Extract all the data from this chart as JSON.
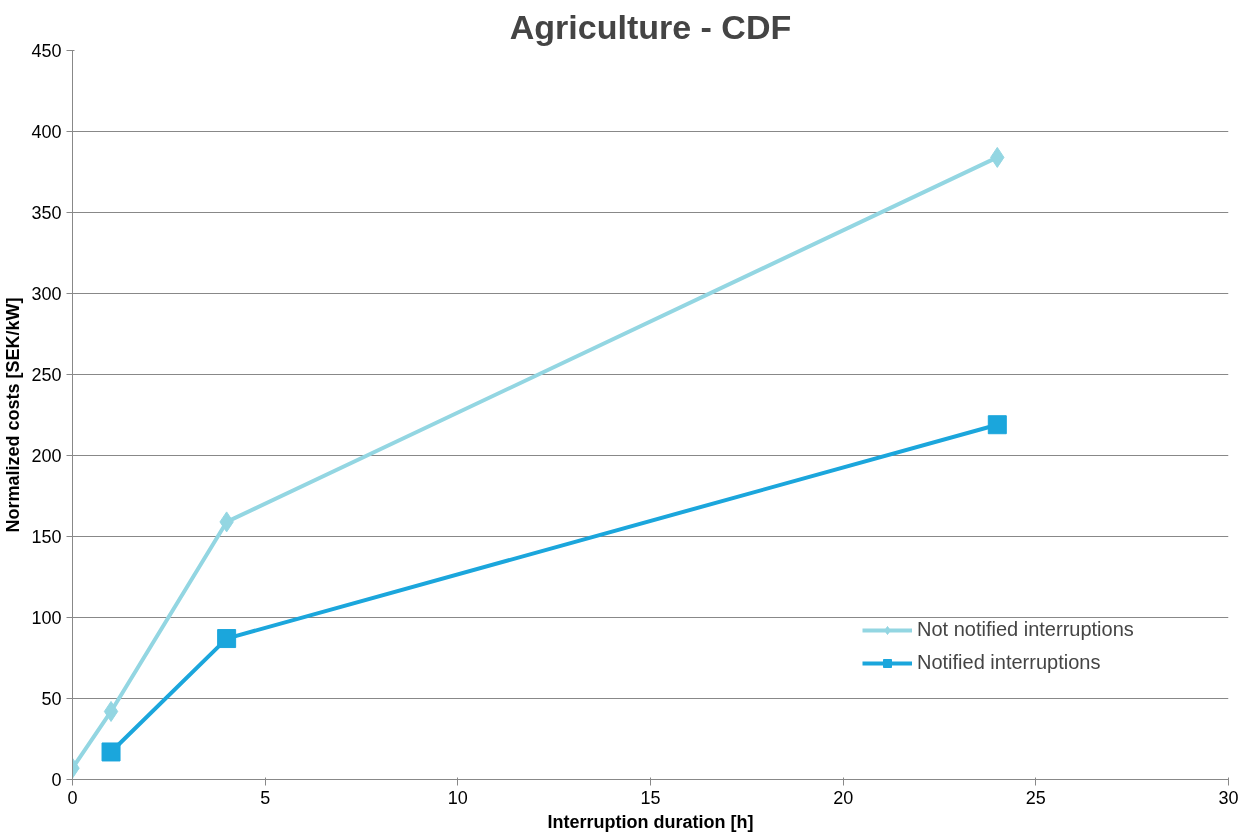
{
  "chart_data": {
    "type": "line",
    "title": "Agriculture - CDF",
    "xlabel": "Interruption duration [h]",
    "ylabel": "Normalized costs [SEK/kW]",
    "series": [
      {
        "name": "Not notified interruptions",
        "color": "#93d6e2",
        "marker": "diamond",
        "x": [
          0,
          1,
          4,
          24
        ],
        "values": [
          7,
          42,
          159,
          384
        ]
      },
      {
        "name": "Notified interruptions",
        "color": "#1ba6dc",
        "marker": "square",
        "x": [
          1,
          4,
          24
        ],
        "values": [
          17,
          87,
          219
        ]
      }
    ],
    "xlim": [
      0,
      30
    ],
    "xticks": [
      0,
      5,
      10,
      15,
      20,
      25,
      30
    ],
    "ylim": [
      0,
      450
    ],
    "yticks": [
      0,
      50,
      100,
      150,
      200,
      250,
      300,
      350,
      400,
      450
    ],
    "grid": "y",
    "legend": "right",
    "line_style": "solid"
  }
}
